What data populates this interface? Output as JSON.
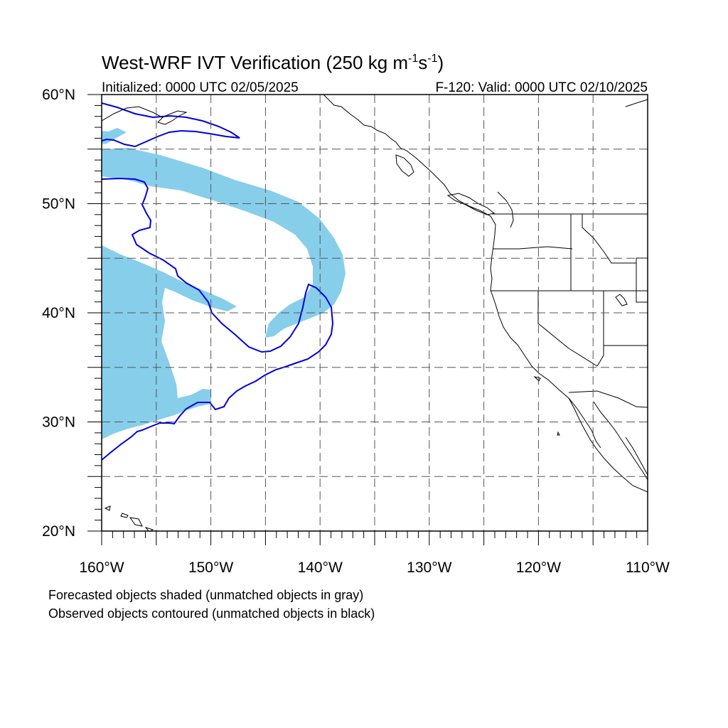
{
  "title": {
    "main": "West-WRF IVT Verification (250 kg m",
    "sup1": "-1",
    "mid": "s",
    "sup2": "-1",
    "end": ")"
  },
  "subtitle_left": "Initialized: 0000 UTC 02/05/2025",
  "subtitle_right": "F-120: Valid: 0000 UTC 02/10/2025",
  "map": {
    "lon_range": [
      -160,
      -110
    ],
    "lat_range": [
      20,
      60
    ],
    "grid_lon_step": 5,
    "grid_lat_step": 5,
    "lon_labels": [
      {
        "lon": -160,
        "text": "160°W"
      },
      {
        "lon": -150,
        "text": "150°W"
      },
      {
        "lon": -140,
        "text": "140°W"
      },
      {
        "lon": -130,
        "text": "130°W"
      },
      {
        "lon": -120,
        "text": "120°W"
      },
      {
        "lon": -110,
        "text": "110°W"
      }
    ],
    "lat_labels": [
      {
        "lat": 60,
        "text": "60°N"
      },
      {
        "lat": 50,
        "text": "50°N"
      },
      {
        "lat": 40,
        "text": "40°N"
      },
      {
        "lat": 30,
        "text": "30°N"
      },
      {
        "lat": 20,
        "text": "20°N"
      }
    ],
    "colors": {
      "forecast_fill": "#87ceeb",
      "observed_contour": "#0000dd",
      "coast": "#000000",
      "grid": "#555555"
    }
  },
  "footer": {
    "line1": "Forecasted objects shaded (unmatched objects in gray)",
    "line2": "Observed objects contoured (unmatched objects in black)"
  }
}
